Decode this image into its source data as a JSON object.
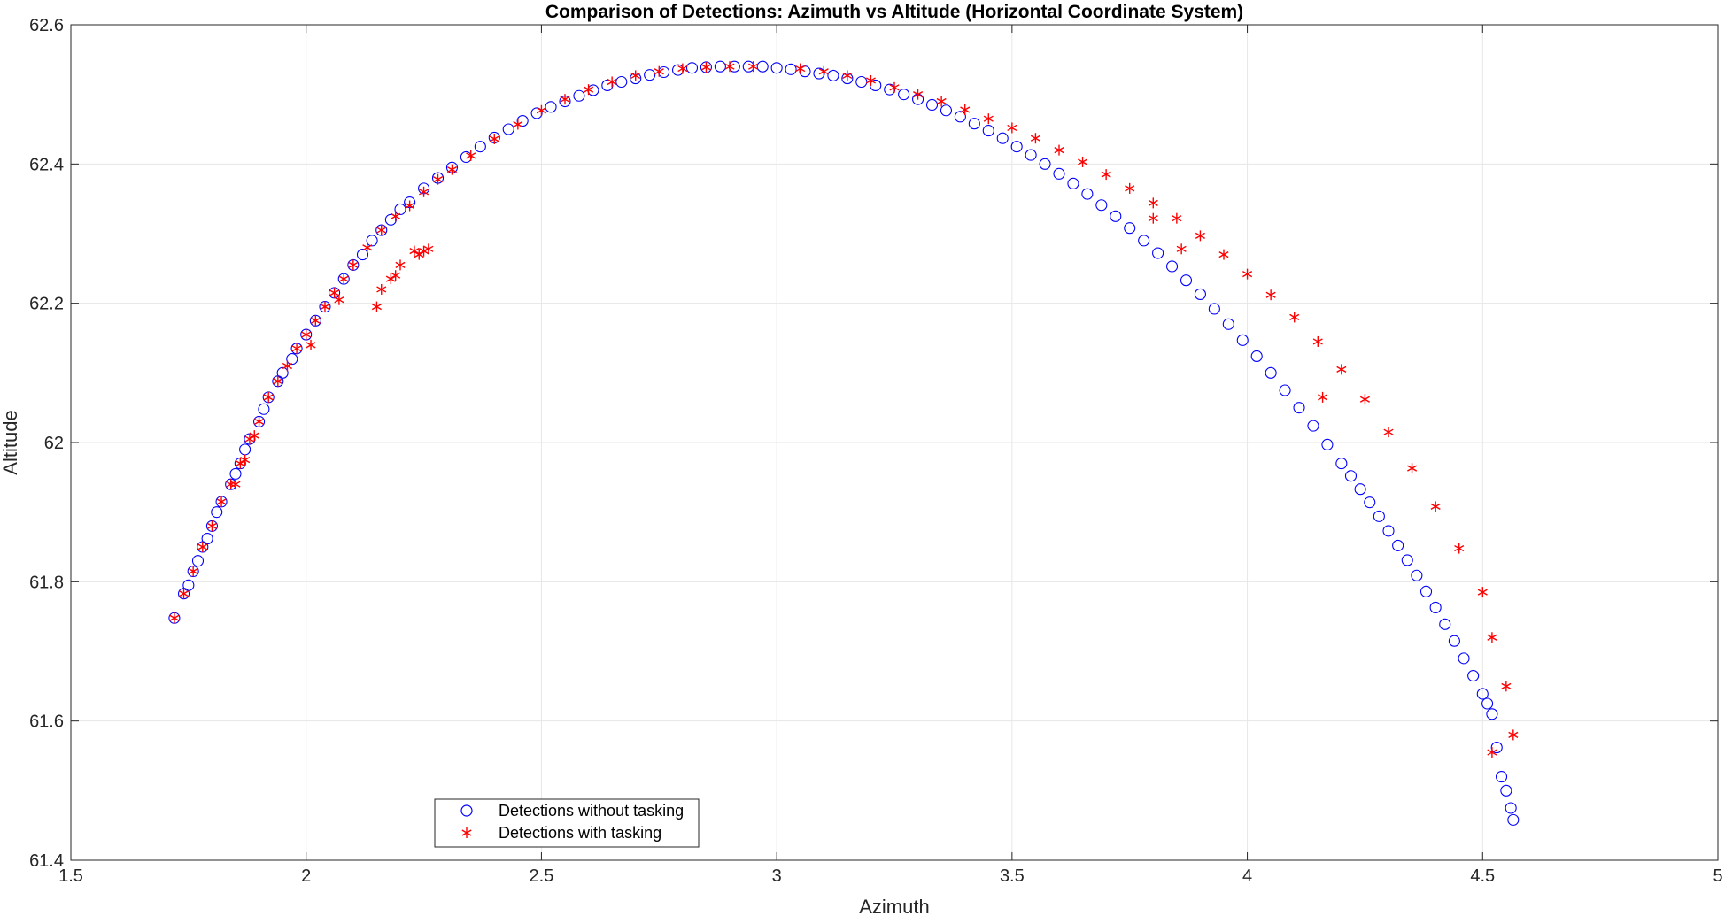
{
  "chart_data": {
    "type": "scatter",
    "title": "Comparison of Detections: Azimuth vs Altitude (Horizontal Coordinate System)",
    "xlabel": "Azimuth",
    "ylabel": "Altitude",
    "xlim": [
      1.5,
      5
    ],
    "ylim": [
      61.4,
      62.6
    ],
    "xticks": [
      1.5,
      2,
      2.5,
      3,
      3.5,
      4,
      4.5,
      5
    ],
    "xtick_labels": [
      "1.5",
      "2",
      "2.5",
      "3",
      "3.5",
      "4",
      "4.5",
      "5"
    ],
    "yticks": [
      61.4,
      61.6,
      61.8,
      62,
      62.2,
      62.4,
      62.6
    ],
    "ytick_labels": [
      "61.4",
      "61.6",
      "61.8",
      "62",
      "62.2",
      "62.4",
      "62.6"
    ],
    "grid": true,
    "legend_position": "bottom-left",
    "series": [
      {
        "name": "Detections without tasking",
        "marker": "circle",
        "color": "#0000ff",
        "x": [
          1.72,
          1.74,
          1.75,
          1.76,
          1.77,
          1.78,
          1.79,
          1.8,
          1.81,
          1.82,
          1.84,
          1.85,
          1.86,
          1.87,
          1.88,
          1.9,
          1.91,
          1.92,
          1.94,
          1.95,
          1.97,
          1.98,
          2.0,
          2.02,
          2.04,
          2.06,
          2.08,
          2.1,
          2.12,
          2.14,
          2.16,
          2.18,
          2.2,
          2.22,
          2.25,
          2.28,
          2.31,
          2.34,
          2.37,
          2.4,
          2.43,
          2.46,
          2.49,
          2.52,
          2.55,
          2.58,
          2.61,
          2.64,
          2.67,
          2.7,
          2.73,
          2.76,
          2.79,
          2.82,
          2.85,
          2.88,
          2.91,
          2.94,
          2.97,
          3.0,
          3.03,
          3.06,
          3.09,
          3.12,
          3.15,
          3.18,
          3.21,
          3.24,
          3.27,
          3.3,
          3.33,
          3.36,
          3.39,
          3.42,
          3.45,
          3.48,
          3.51,
          3.54,
          3.57,
          3.6,
          3.63,
          3.66,
          3.69,
          3.72,
          3.75,
          3.78,
          3.81,
          3.84,
          3.87,
          3.9,
          3.93,
          3.96,
          3.99,
          4.02,
          4.05,
          4.08,
          4.11,
          4.14,
          4.17,
          4.2,
          4.22,
          4.24,
          4.26,
          4.28,
          4.3,
          4.32,
          4.34,
          4.36,
          4.38,
          4.4,
          4.42,
          4.44,
          4.46,
          4.48,
          4.5,
          4.51,
          4.52,
          4.53,
          4.54,
          4.55,
          4.56,
          4.565
        ],
        "y": [
          61.748,
          61.783,
          61.795,
          61.815,
          61.83,
          61.85,
          61.862,
          61.88,
          61.9,
          61.915,
          61.94,
          61.955,
          61.97,
          61.99,
          62.005,
          62.03,
          62.048,
          62.065,
          62.088,
          62.1,
          62.12,
          62.135,
          62.155,
          62.175,
          62.195,
          62.215,
          62.235,
          62.255,
          62.27,
          62.29,
          62.305,
          62.32,
          62.335,
          62.345,
          62.365,
          62.38,
          62.395,
          62.41,
          62.425,
          62.438,
          62.45,
          62.462,
          62.473,
          62.482,
          62.49,
          62.498,
          62.506,
          62.513,
          62.518,
          62.523,
          62.528,
          62.532,
          62.535,
          62.538,
          62.539,
          62.54,
          62.54,
          62.54,
          62.54,
          62.538,
          62.536,
          62.533,
          62.53,
          62.527,
          62.523,
          62.518,
          62.513,
          62.507,
          62.5,
          62.493,
          62.485,
          62.477,
          62.468,
          62.458,
          62.448,
          62.437,
          62.425,
          62.413,
          62.4,
          62.386,
          62.372,
          62.357,
          62.341,
          62.325,
          62.308,
          62.29,
          62.272,
          62.253,
          62.233,
          62.213,
          62.192,
          62.17,
          62.147,
          62.124,
          62.1,
          62.075,
          62.05,
          62.024,
          61.997,
          61.97,
          61.952,
          61.933,
          61.914,
          61.894,
          61.873,
          61.852,
          61.831,
          61.809,
          61.786,
          61.763,
          61.739,
          61.715,
          61.69,
          61.665,
          61.639,
          61.625,
          61.61,
          61.562,
          61.52,
          61.5,
          61.475,
          61.458
        ]
      },
      {
        "name": "Detections with tasking",
        "marker": "asterisk",
        "color": "#ff0000",
        "x": [
          1.72,
          1.74,
          1.76,
          1.78,
          1.8,
          1.82,
          1.84,
          1.86,
          1.88,
          1.9,
          1.92,
          1.94,
          1.96,
          1.98,
          2.0,
          2.02,
          2.04,
          2.06,
          2.08,
          2.1,
          2.13,
          2.16,
          2.19,
          2.22,
          2.25,
          2.28,
          2.31,
          2.35,
          2.4,
          2.45,
          2.5,
          2.55,
          2.6,
          2.65,
          2.7,
          2.75,
          2.8,
          2.85,
          2.9,
          2.95,
          3.05,
          3.1,
          3.15,
          3.2,
          3.25,
          3.3,
          3.35,
          3.4,
          3.45,
          3.5,
          3.55,
          3.6,
          3.65,
          3.7,
          3.75,
          3.8,
          3.85,
          3.9,
          3.95,
          4.0,
          4.05,
          4.1,
          4.15,
          4.2,
          4.25,
          4.3,
          4.35,
          4.4,
          4.45,
          4.5,
          4.52,
          4.55,
          4.565,
          1.85,
          1.87,
          1.89,
          2.01,
          2.07,
          2.15,
          2.16,
          2.18,
          2.19,
          2.2,
          2.23,
          2.24,
          2.25,
          2.26,
          3.8,
          3.86,
          4.16,
          4.52
        ],
        "y": [
          61.748,
          61.783,
          61.815,
          61.85,
          61.88,
          61.915,
          61.94,
          61.97,
          62.005,
          62.03,
          62.065,
          62.088,
          62.11,
          62.135,
          62.155,
          62.175,
          62.195,
          62.215,
          62.235,
          62.255,
          62.28,
          62.305,
          62.325,
          62.34,
          62.36,
          62.378,
          62.392,
          62.412,
          62.436,
          62.457,
          62.477,
          62.493,
          62.507,
          62.518,
          62.527,
          62.533,
          62.537,
          62.539,
          62.54,
          62.54,
          62.537,
          62.533,
          62.527,
          62.52,
          62.51,
          62.5,
          62.49,
          62.478,
          62.465,
          62.452,
          62.437,
          62.42,
          62.403,
          62.385,
          62.365,
          62.344,
          62.322,
          62.297,
          62.27,
          62.242,
          62.212,
          62.18,
          62.145,
          62.105,
          62.062,
          62.015,
          61.963,
          61.908,
          61.848,
          61.785,
          61.72,
          61.65,
          61.58,
          61.94,
          61.975,
          62.01,
          62.14,
          62.205,
          62.195,
          62.22,
          62.235,
          62.24,
          62.255,
          62.275,
          62.27,
          62.275,
          62.278,
          62.322,
          62.278,
          62.065,
          61.555
        ]
      }
    ]
  }
}
